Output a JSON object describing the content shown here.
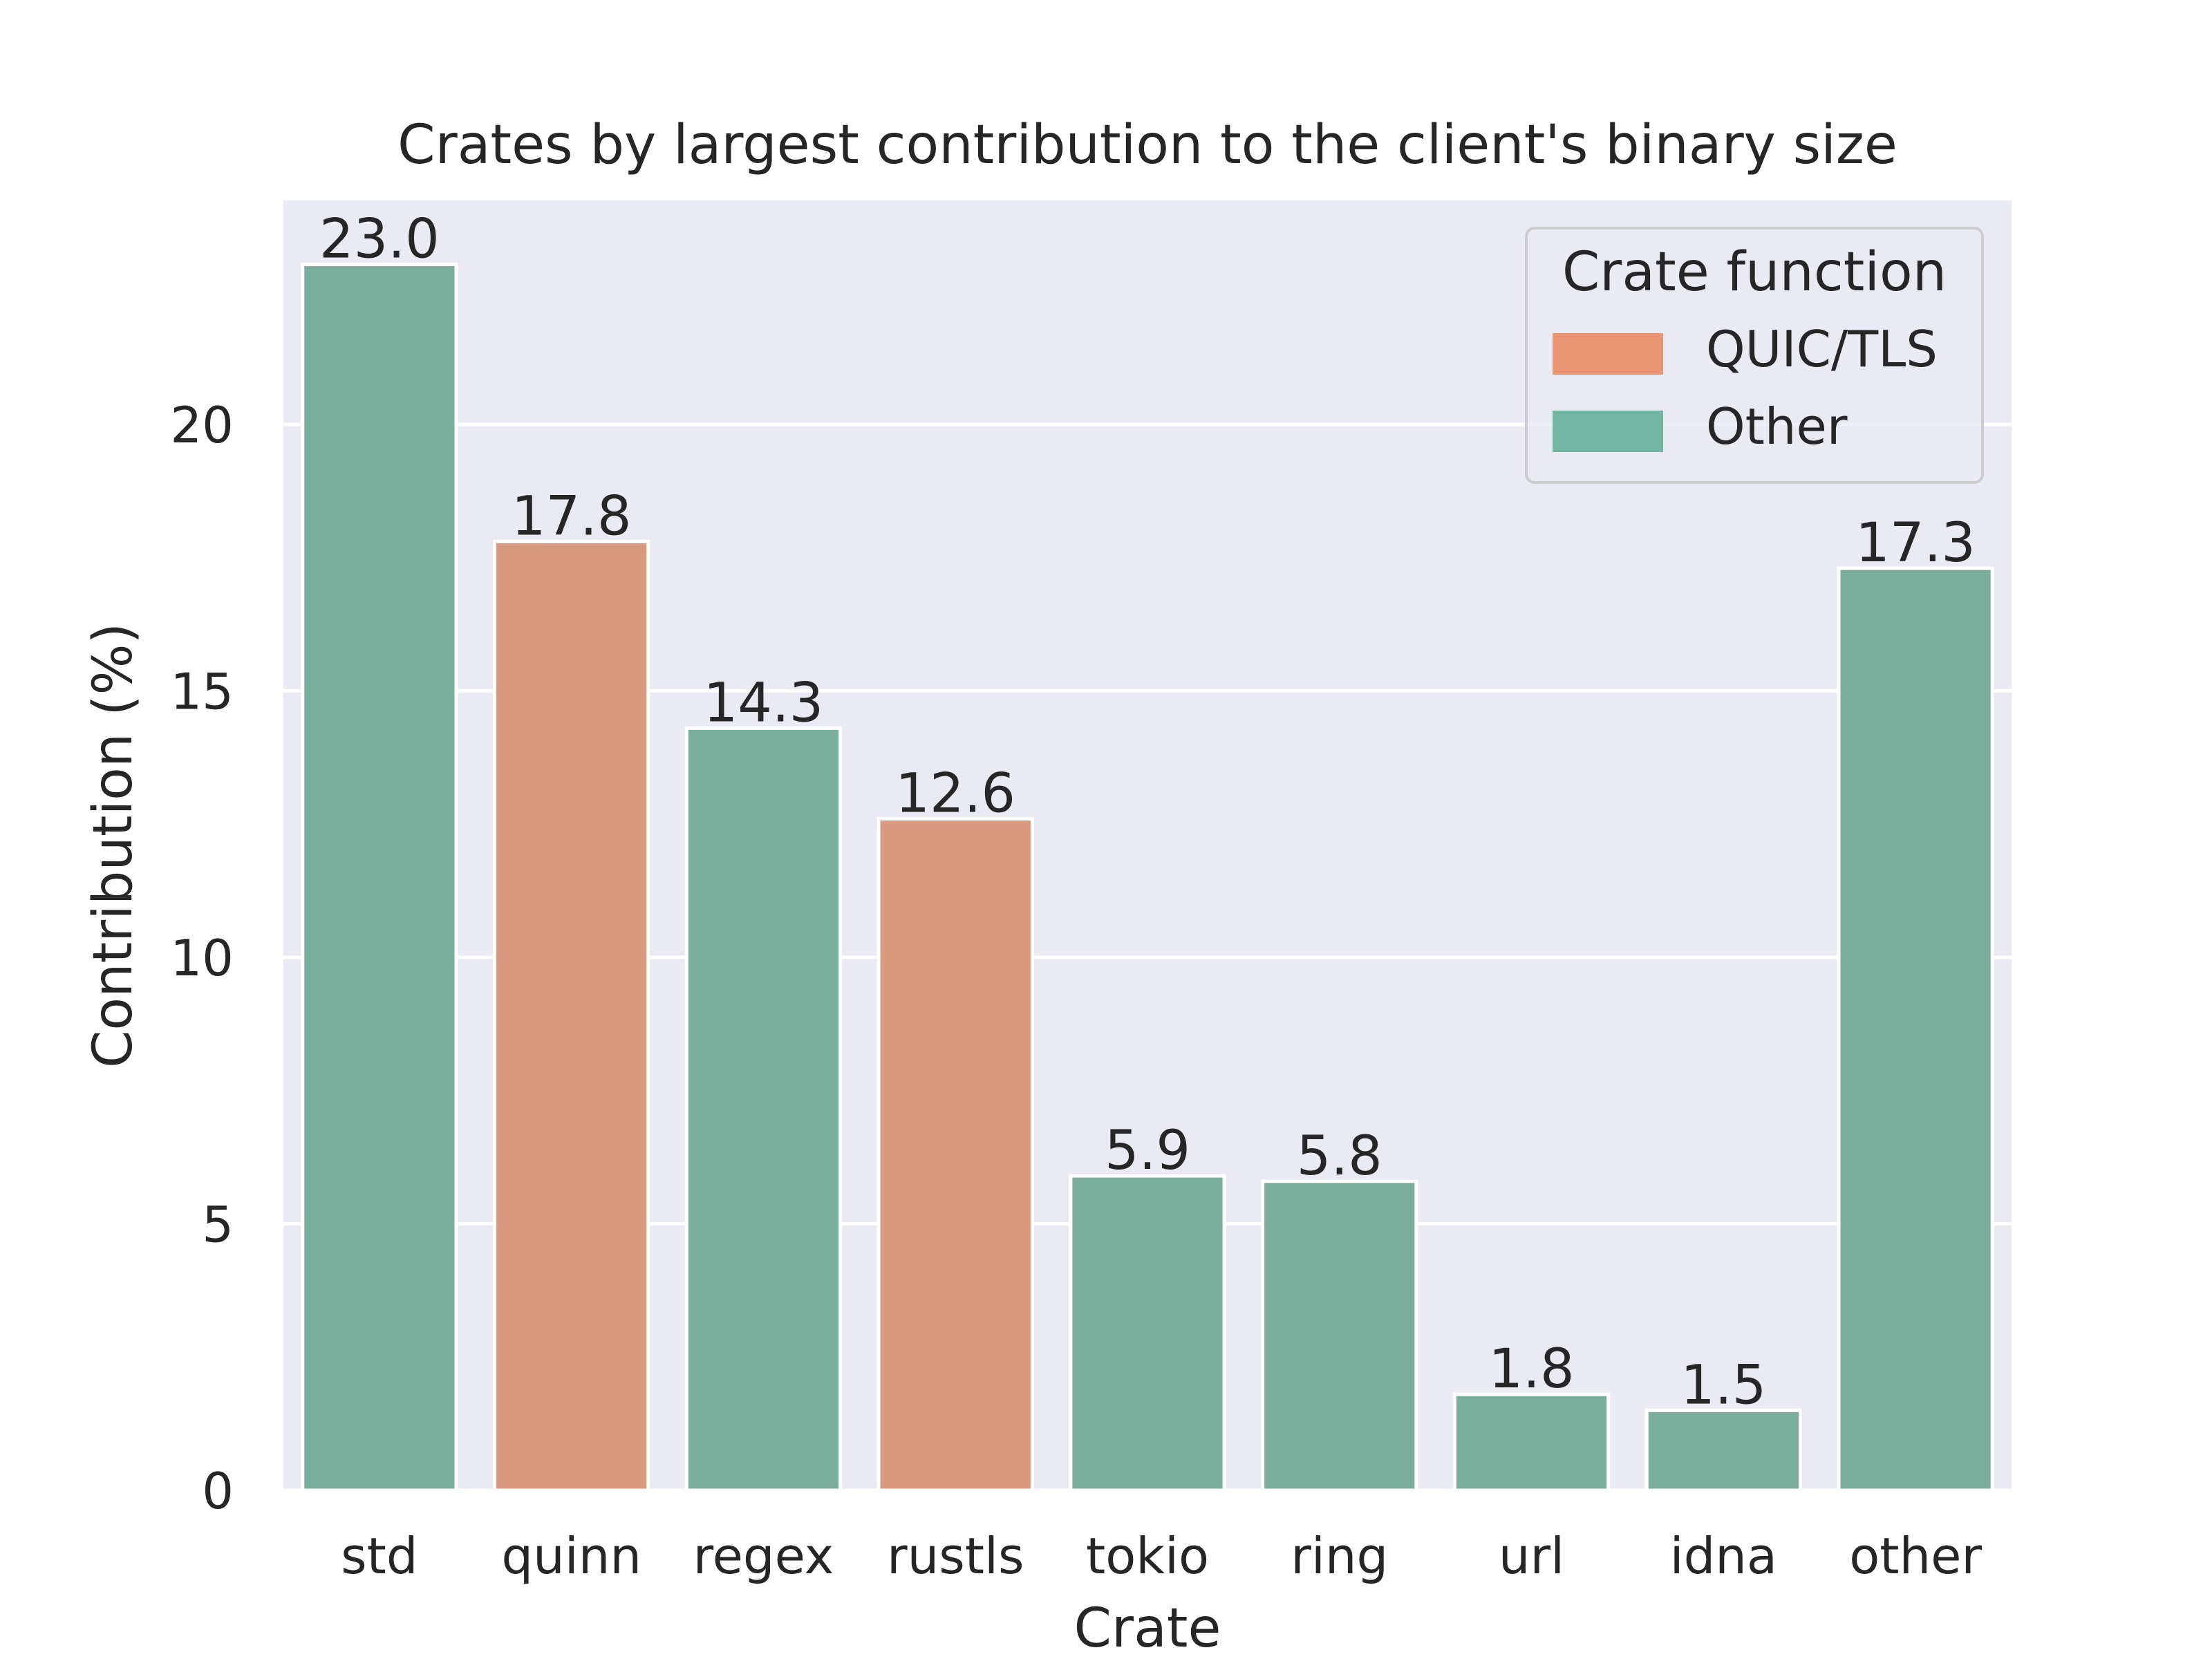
{
  "chart_data": {
    "type": "bar",
    "title": "Crates by largest contribution to the client's binary size",
    "xlabel": "Crate",
    "ylabel": "Contribution (%)",
    "categories": [
      "std",
      "quinn",
      "regex",
      "rustls",
      "tokio",
      "ring",
      "url",
      "idna",
      "other"
    ],
    "values": [
      23.0,
      17.8,
      14.3,
      12.6,
      5.9,
      5.8,
      1.8,
      1.5,
      17.3
    ],
    "value_labels": [
      "23.0",
      "17.8",
      "14.3",
      "12.6",
      "5.9",
      "5.8",
      "1.8",
      "1.5",
      "17.3"
    ],
    "groups": [
      "Other",
      "QUIC/TLS",
      "Other",
      "QUIC/TLS",
      "Other",
      "Other",
      "Other",
      "Other",
      "Other"
    ],
    "ylim": [
      0,
      24.2
    ],
    "yticks": [
      0,
      5,
      10,
      15,
      20
    ],
    "grid": true,
    "legend": {
      "title": "Crate function",
      "placement": "top-right",
      "entries": [
        {
          "name": "QUIC/TLS",
          "color": "#e99675"
        },
        {
          "name": "Other",
          "color": "#72b6a1"
        }
      ]
    },
    "bar_colors": {
      "QUIC/TLS": "#d99a82",
      "Other": "#7aad9c"
    },
    "background_color": "#eaeaf2"
  }
}
